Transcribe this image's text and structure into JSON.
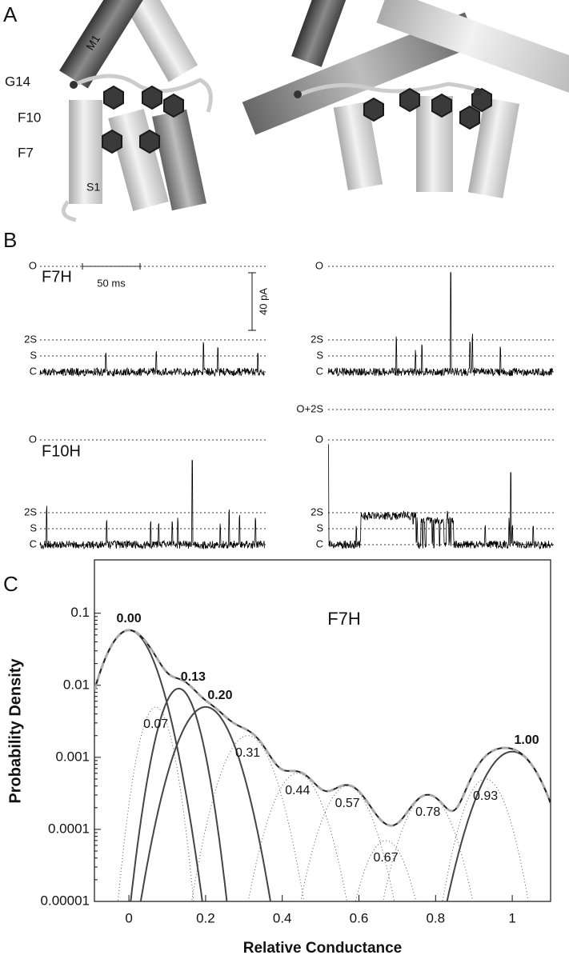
{
  "panel_a": {
    "label": "A",
    "annotations": [
      "M1",
      "G14",
      "F10",
      "F7",
      "S1"
    ]
  },
  "panel_b": {
    "label": "B",
    "scale_time": "50 ms",
    "scale_current": "40 pA",
    "traces": [
      {
        "name": "F7H",
        "levels": [
          "O",
          "2S",
          "S",
          "C"
        ]
      },
      {
        "levels": [
          "O",
          "2S",
          "S",
          "C"
        ]
      },
      {
        "name": "F10H",
        "levels": [
          "O",
          "2S",
          "S",
          "C"
        ]
      },
      {
        "levels": [
          "O+2S",
          "O",
          "2S",
          "S",
          "C"
        ]
      }
    ]
  },
  "panel_c_label": "C",
  "chart_data": {
    "type": "line",
    "title": "F7H",
    "x_label": "Relative Conductance",
    "y_label": "Probability Density",
    "log_y": true,
    "xlim": [
      -0.09,
      1.1
    ],
    "ylim": [
      1e-05,
      0.55
    ],
    "xticks": [
      0,
      0.2,
      0.4,
      0.6,
      0.8,
      1
    ],
    "yticks": [
      1e-05,
      0.0001,
      0.001,
      0.01,
      0.1
    ],
    "components": [
      {
        "label": "0.00",
        "mean": 0,
        "peak": 0.058,
        "sd": 0.046,
        "style": "solid"
      },
      {
        "label": "0.07",
        "mean": 0.07,
        "peak": 0.005,
        "sd": 0.028,
        "style": "dotted"
      },
      {
        "label": "0.13",
        "mean": 0.13,
        "peak": 0.009,
        "sd": 0.034,
        "style": "solid"
      },
      {
        "label": "0.20",
        "mean": 0.2,
        "peak": 0.005,
        "sd": 0.048,
        "style": "solid"
      },
      {
        "label": "0.31",
        "mean": 0.31,
        "peak": 0.002,
        "sd": 0.045,
        "style": "dotted"
      },
      {
        "label": "0.44",
        "mean": 0.44,
        "peak": 0.0006,
        "sd": 0.045,
        "style": "dotted"
      },
      {
        "label": "0.57",
        "mean": 0.57,
        "peak": 0.0004,
        "sd": 0.045,
        "style": "dotted"
      },
      {
        "label": "0.67",
        "mean": 0.67,
        "peak": 7e-05,
        "sd": 0.04,
        "style": "dotted"
      },
      {
        "label": "0.78",
        "mean": 0.78,
        "peak": 0.0003,
        "sd": 0.045,
        "style": "dotted"
      },
      {
        "label": "0.93",
        "mean": 0.93,
        "peak": 0.0005,
        "sd": 0.04,
        "style": "dotted"
      },
      {
        "label": "1.00",
        "mean": 1,
        "peak": 0.0012,
        "sd": 0.055,
        "style": "solid"
      }
    ]
  }
}
